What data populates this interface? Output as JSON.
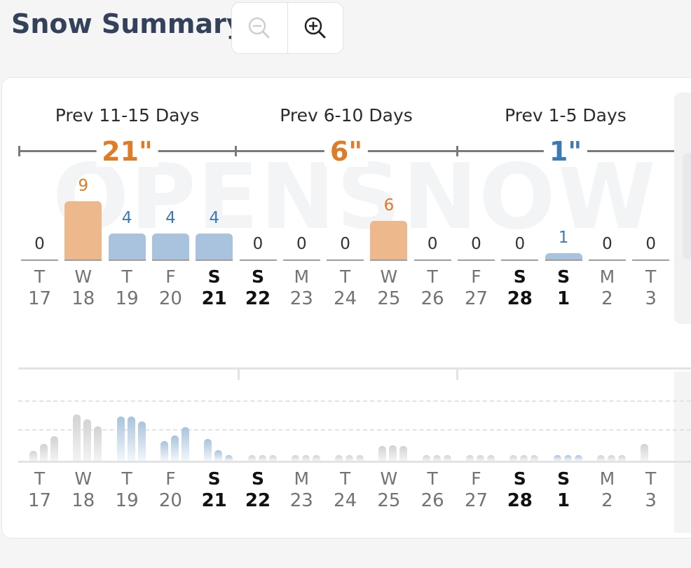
{
  "title": "Snow Summary",
  "zoom": {
    "out_icon": "zoom-out-icon",
    "in_icon": "zoom-in-icon"
  },
  "watermark": "OPENSNOW",
  "colors": {
    "orange": "#e07b28",
    "blue": "#3d7ab8",
    "bar_orange": "#edb88b",
    "bar_blue": "#a9c3de"
  },
  "periods": [
    {
      "label": "Prev 11-15 Days",
      "total": "21\"",
      "color": "orange"
    },
    {
      "label": "Prev 6-10 Days",
      "total": "6\"",
      "color": "orange"
    },
    {
      "label": "Prev 1-5 Days",
      "total": "1\"",
      "color": "blue"
    }
  ],
  "days": [
    {
      "dow": "T",
      "dom": "17",
      "snow": "0",
      "weekend": false
    },
    {
      "dow": "W",
      "dom": "18",
      "snow": "9",
      "weekend": false
    },
    {
      "dow": "T",
      "dom": "19",
      "snow": "4",
      "weekend": false
    },
    {
      "dow": "F",
      "dom": "20",
      "snow": "4",
      "weekend": false
    },
    {
      "dow": "S",
      "dom": "21",
      "snow": "4",
      "weekend": true
    },
    {
      "dow": "S",
      "dom": "22",
      "snow": "0",
      "weekend": true
    },
    {
      "dow": "M",
      "dom": "23",
      "snow": "0",
      "weekend": false
    },
    {
      "dow": "T",
      "dom": "24",
      "snow": "0",
      "weekend": false
    },
    {
      "dow": "W",
      "dom": "25",
      "snow": "6",
      "weekend": false
    },
    {
      "dow": "T",
      "dom": "26",
      "snow": "0",
      "weekend": false
    },
    {
      "dow": "F",
      "dom": "27",
      "snow": "0",
      "weekend": false
    },
    {
      "dow": "S",
      "dom": "28",
      "snow": "0",
      "weekend": true
    },
    {
      "dow": "S",
      "dom": "1",
      "snow": "1",
      "weekend": true
    },
    {
      "dow": "M",
      "dom": "2",
      "snow": "0",
      "weekend": false
    },
    {
      "dow": "T",
      "dom": "3",
      "snow": "0",
      "weekend": false
    }
  ],
  "hourly_levels": [
    [
      0.2,
      0.35,
      0.5
    ],
    [
      0.95,
      0.85,
      0.7
    ],
    [
      0.9,
      0.9,
      0.8
    ],
    [
      0.4,
      0.52,
      0.68
    ],
    [
      0.45,
      0.22,
      0.12
    ],
    [
      0.1,
      0.1,
      0.1
    ],
    [
      0.1,
      0.1,
      0.1
    ],
    [
      0.1,
      0.1,
      0.1
    ],
    [
      0.3,
      0.32,
      0.3
    ],
    [
      0.1,
      0.1,
      0.1
    ],
    [
      0.1,
      0.1,
      0.1
    ],
    [
      0.1,
      0.1,
      0.1
    ],
    [
      0.1,
      0.1,
      0.1
    ],
    [
      0.1,
      0.1,
      0.1
    ],
    [
      0.34
    ]
  ]
}
